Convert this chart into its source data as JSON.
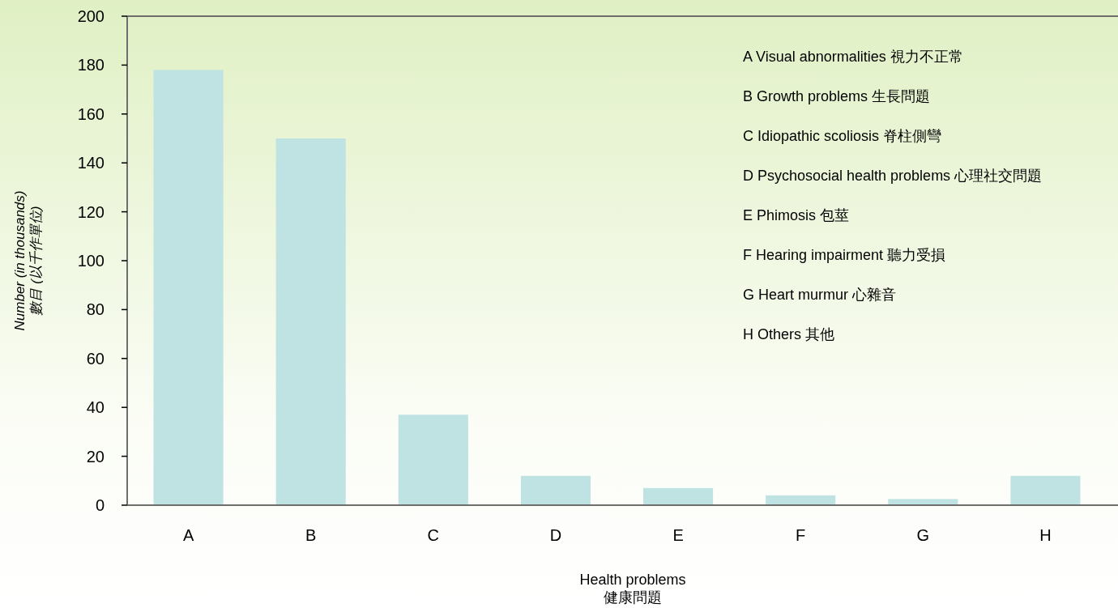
{
  "chart_data": {
    "type": "bar",
    "xlabel": "Health problems\n健康問題",
    "ylabel": "Number (in thousands)\n數目 (以千作單位)",
    "categories": [
      "A",
      "B",
      "C",
      "D",
      "E",
      "F",
      "G",
      "H"
    ],
    "values": [
      178,
      150,
      37,
      12,
      7,
      4,
      2.5,
      12
    ],
    "color": "#bfe3e3",
    "ylim": [
      0,
      200
    ],
    "yticks": [
      0,
      20,
      40,
      60,
      80,
      100,
      120,
      140,
      160,
      180,
      200
    ],
    "grid": false,
    "annotations": [
      "A  Visual abnormalities 視力不正常",
      "B  Growth problems 生長問題",
      "C  Idiopathic scoliosis 脊柱側彎",
      "D  Psychosocial health problems 心理社交問題",
      "E  Phimosis 包莖",
      "F  Hearing impairment 聽力受損",
      "G  Heart murmur 心雜音",
      "H  Others 其他"
    ]
  }
}
